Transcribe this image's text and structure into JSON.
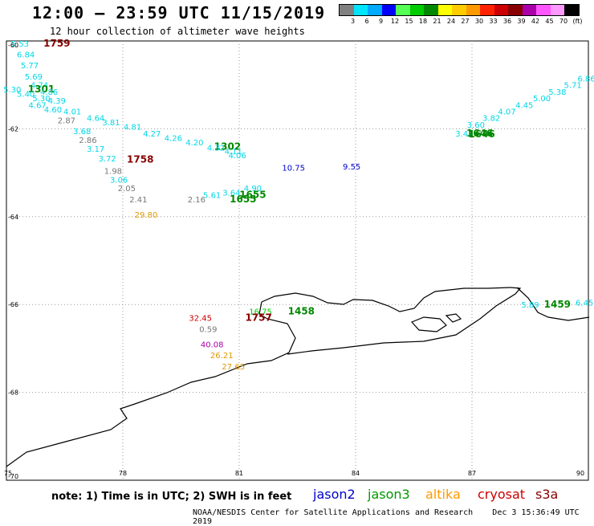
{
  "header": {
    "title": "12:00 – 23:59 UTC 11/15/2019",
    "subtitle": "12 hour collection of altimeter wave heights"
  },
  "color_scale": {
    "labels": [
      "3",
      "6",
      "9",
      "12",
      "15",
      "18",
      "21",
      "24",
      "27",
      "30",
      "33",
      "36",
      "39",
      "42",
      "45",
      "70",
      "(ft)"
    ],
    "colors": [
      "#808080",
      "#00e5ff",
      "#00aaff",
      "#0000ff",
      "#55ff55",
      "#00cc00",
      "#008800",
      "#ffff00",
      "#ffcc00",
      "#ff9900",
      "#ff2200",
      "#cc0000",
      "#880000",
      "#aa00aa",
      "#ff55ff",
      "#ff99ff",
      "#000000"
    ]
  },
  "map": {
    "axes": {
      "lat_labels": [
        "-60",
        "-62",
        "-64",
        "-66",
        "-68",
        "-70"
      ],
      "lon_labels": [
        "75",
        "78",
        "81",
        "84",
        "87",
        "90"
      ]
    },
    "lat_range": [
      -70,
      -60
    ],
    "lon_range": [
      75,
      90
    ],
    "points": [
      {
        "t": "5.53",
        "lon": 75.35,
        "lat": -60.05,
        "c": "#00d8e8"
      },
      {
        "t": "1759",
        "lon": 76.3,
        "lat": -60.05,
        "c": "#880000",
        "b": 1
      },
      {
        "t": "6.84",
        "lon": 75.5,
        "lat": -60.3,
        "c": "#00d8e8"
      },
      {
        "t": "5.77",
        "lon": 75.6,
        "lat": -60.55,
        "c": "#00d8e8"
      },
      {
        "t": "5.69",
        "lon": 75.7,
        "lat": -60.8,
        "c": "#00d8e8"
      },
      {
        "t": "4.74",
        "lon": 75.85,
        "lat": -61.0,
        "c": "#00d8e8"
      },
      {
        "t": "5.30",
        "lon": 75.15,
        "lat": -61.1,
        "c": "#00d8e8"
      },
      {
        "t": "1301",
        "lon": 75.9,
        "lat": -61.1,
        "c": "#008800",
        "b": 1
      },
      {
        "t": "4.86",
        "lon": 76.1,
        "lat": -61.15,
        "c": "#00d8e8"
      },
      {
        "t": "5.40",
        "lon": 75.5,
        "lat": -61.2,
        "c": "#00d8e8"
      },
      {
        "t": "5.30",
        "lon": 75.9,
        "lat": -61.3,
        "c": "#00d8e8"
      },
      {
        "t": "4.39",
        "lon": 76.3,
        "lat": -61.35,
        "c": "#00d8e8"
      },
      {
        "t": "4.67",
        "lon": 75.8,
        "lat": -61.45,
        "c": "#00d8e8"
      },
      {
        "t": "4.60",
        "lon": 76.2,
        "lat": -61.55,
        "c": "#00d8e8"
      },
      {
        "t": "4.01",
        "lon": 76.7,
        "lat": -61.6,
        "c": "#00d8e8"
      },
      {
        "t": "4.64",
        "lon": 77.3,
        "lat": -61.75,
        "c": "#00d8e8"
      },
      {
        "t": "2.87",
        "lon": 76.55,
        "lat": -61.8,
        "c": "#777777"
      },
      {
        "t": "3.81",
        "lon": 77.7,
        "lat": -61.85,
        "c": "#00d8e8"
      },
      {
        "t": "4.81",
        "lon": 78.25,
        "lat": -61.95,
        "c": "#00d8e8"
      },
      {
        "t": "3.68",
        "lon": 76.95,
        "lat": -62.05,
        "c": "#00d8e8"
      },
      {
        "t": "4.27",
        "lon": 78.75,
        "lat": -62.1,
        "c": "#00d8e8"
      },
      {
        "t": "4.26",
        "lon": 79.3,
        "lat": -62.2,
        "c": "#00d8e8"
      },
      {
        "t": "2.86",
        "lon": 77.1,
        "lat": -62.25,
        "c": "#777777"
      },
      {
        "t": "4.20",
        "lon": 79.85,
        "lat": -62.3,
        "c": "#00d8e8"
      },
      {
        "t": "1302",
        "lon": 80.7,
        "lat": -62.4,
        "c": "#008800",
        "b": 1
      },
      {
        "t": "4.32",
        "lon": 80.4,
        "lat": -62.42,
        "c": "#00d8e8"
      },
      {
        "t": "3.17",
        "lon": 77.3,
        "lat": -62.45,
        "c": "#00d8e8"
      },
      {
        "t": "4.11",
        "lon": 80.85,
        "lat": -62.5,
        "c": "#00d8e8"
      },
      {
        "t": "4.06",
        "lon": 80.95,
        "lat": -62.6,
        "c": "#00d8e8"
      },
      {
        "t": "3.72",
        "lon": 77.6,
        "lat": -62.67,
        "c": "#00d8e8"
      },
      {
        "t": "1758",
        "lon": 78.45,
        "lat": -62.7,
        "c": "#880000",
        "b": 1
      },
      {
        "t": "10.75",
        "lon": 82.4,
        "lat": -62.88,
        "c": "#0000cc"
      },
      {
        "t": "9.55",
        "lon": 83.9,
        "lat": -62.85,
        "c": "#0000cc"
      },
      {
        "t": "1.98",
        "lon": 77.75,
        "lat": -62.95,
        "c": "#777777"
      },
      {
        "t": "3.06",
        "lon": 77.9,
        "lat": -63.15,
        "c": "#00d8e8"
      },
      {
        "t": "2.05",
        "lon": 78.1,
        "lat": -63.35,
        "c": "#777777"
      },
      {
        "t": "4.90",
        "lon": 81.35,
        "lat": -63.35,
        "c": "#00d8e8"
      },
      {
        "t": "3.64",
        "lon": 80.8,
        "lat": -63.45,
        "c": "#00d8e8"
      },
      {
        "t": "1655",
        "lon": 81.35,
        "lat": -63.5,
        "c": "#008800",
        "b": 1
      },
      {
        "t": "5.61",
        "lon": 80.3,
        "lat": -63.5,
        "c": "#00d8e8"
      },
      {
        "t": "1655",
        "lon": 81.1,
        "lat": -63.6,
        "c": "#008800",
        "b": 1
      },
      {
        "t": "2.41",
        "lon": 78.4,
        "lat": -63.6,
        "c": "#777777"
      },
      {
        "t": "2.16",
        "lon": 79.9,
        "lat": -63.6,
        "c": "#777777"
      },
      {
        "t": "29.80",
        "lon": 78.6,
        "lat": -63.95,
        "c": "#dd9900"
      },
      {
        "t": "3.47",
        "lon": 86.8,
        "lat": -62.1,
        "c": "#00d8e8"
      },
      {
        "t": "1646",
        "lon": 87.2,
        "lat": -62.1,
        "c": "#008800",
        "b": 1
      },
      {
        "t": "1646",
        "lon": 87.25,
        "lat": -62.12,
        "c": "#008800",
        "b": 1
      },
      {
        "t": "3.60",
        "lon": 87.1,
        "lat": -61.9,
        "c": "#00d8e8"
      },
      {
        "t": "3.82",
        "lon": 87.5,
        "lat": -61.75,
        "c": "#00d8e8"
      },
      {
        "t": "4.07",
        "lon": 87.9,
        "lat": -61.6,
        "c": "#00d8e8"
      },
      {
        "t": "4.45",
        "lon": 88.35,
        "lat": -61.45,
        "c": "#00d8e8"
      },
      {
        "t": "5.00",
        "lon": 88.8,
        "lat": -61.3,
        "c": "#00d8e8"
      },
      {
        "t": "5.38",
        "lon": 89.2,
        "lat": -61.15,
        "c": "#00d8e8"
      },
      {
        "t": "5.71",
        "lon": 89.6,
        "lat": -61.0,
        "c": "#00d8e8"
      },
      {
        "t": "6.86",
        "lon": 89.95,
        "lat": -60.85,
        "c": "#00d8e8"
      },
      {
        "t": "16.75",
        "lon": 81.55,
        "lat": -66.15,
        "c": "#00cc00"
      },
      {
        "t": "1458",
        "lon": 82.6,
        "lat": -66.15,
        "c": "#008800",
        "b": 1
      },
      {
        "t": "32.45",
        "lon": 80.0,
        "lat": -66.3,
        "c": "#cc0000"
      },
      {
        "t": "1757",
        "lon": 81.5,
        "lat": -66.3,
        "c": "#880000",
        "b": 1
      },
      {
        "t": "0.59",
        "lon": 80.2,
        "lat": -66.55,
        "c": "#777777"
      },
      {
        "t": "40.08",
        "lon": 80.3,
        "lat": -66.9,
        "c": "#aa00aa"
      },
      {
        "t": "26.21",
        "lon": 80.55,
        "lat": -67.15,
        "c": "#dd9900"
      },
      {
        "t": "27.65",
        "lon": 80.85,
        "lat": -67.4,
        "c": "#dd9900"
      },
      {
        "t": "5.89",
        "lon": 88.5,
        "lat": -66.0,
        "c": "#00d8e8"
      },
      {
        "t": "1459",
        "lon": 89.2,
        "lat": -66.0,
        "c": "#008800",
        "b": 1
      },
      {
        "t": "6.45",
        "lon": 89.9,
        "lat": -65.95,
        "c": "#00d8e8"
      }
    ]
  },
  "footer": {
    "note": "note:  1) Time is in UTC;  2) SWH is in feet",
    "satellites": [
      {
        "name": "jason2",
        "color": "#0000cc"
      },
      {
        "name": "jason3",
        "color": "#009900"
      },
      {
        "name": "altika",
        "color": "#ff9900"
      },
      {
        "name": "cryosat",
        "color": "#cc0000"
      },
      {
        "name": "s3a",
        "color": "#880000"
      }
    ],
    "credit": "NOAA/NESDIS Center for Satellite Applications and Research",
    "timestamp": "Dec  3 15:36:49 UTC 2019"
  }
}
